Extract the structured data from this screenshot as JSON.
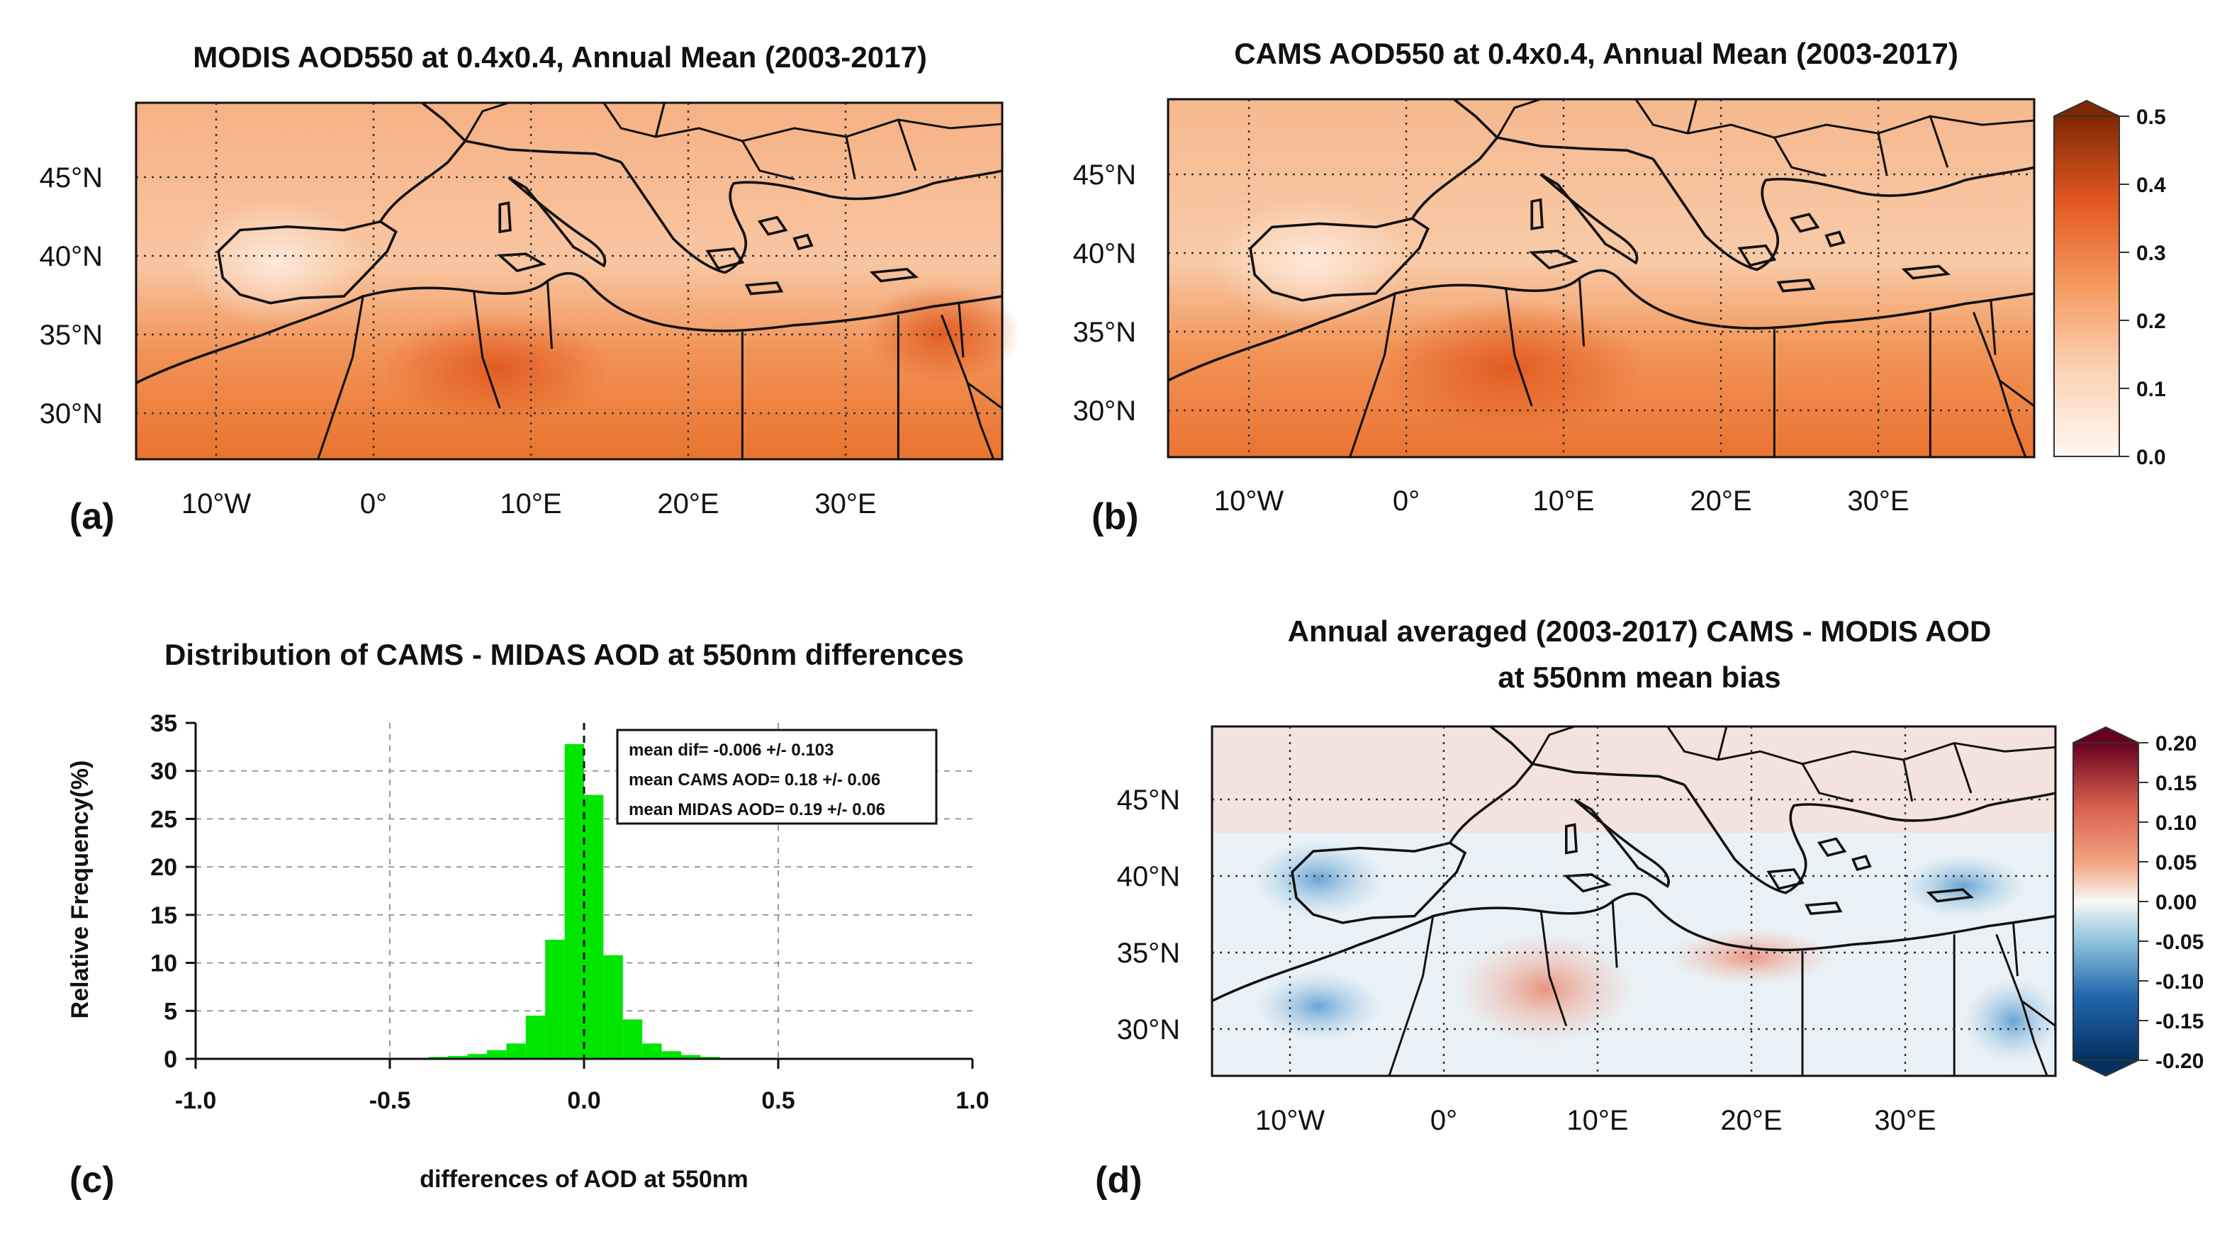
{
  "colors": {
    "map_low": "#fde7d8",
    "map_mid": "#f29a6a",
    "map_high": "#e2581f",
    "div_neg": "#1f6fb1",
    "div_zero": "#f3f6f8",
    "div_pos": "#d6604d",
    "hist_bar": "#00e600",
    "grid": "#555555"
  },
  "panels": {
    "a": {
      "label": "(a)",
      "title": "MODIS AOD550 at 0.4x0.4, Annual Mean (2003-2017)"
    },
    "b": {
      "label": "(b)",
      "title": "CAMS AOD550 at 0.4x0.4, Annual Mean (2003-2017)"
    },
    "c": {
      "label": "(c)",
      "title": "Distribution  of CAMS - MIDAS AOD at 550nm differences"
    },
    "d": {
      "label": "(d)",
      "title_line1": "Annual averaged (2003-2017) CAMS - MODIS AOD",
      "title_line2": "at 550nm mean bias"
    }
  },
  "map_axes": {
    "lon_labels": [
      "10°W",
      "0°",
      "10°E",
      "20°E",
      "30°E"
    ],
    "lat_labels": [
      "45°N",
      "40°N",
      "35°N",
      "30°N"
    ]
  },
  "colorbars": {
    "aod": {
      "ticks": [
        "0.5",
        "0.4",
        "0.3",
        "0.2",
        "0.1",
        "0.0"
      ],
      "range": [
        0.0,
        0.5
      ]
    },
    "bias": {
      "ticks": [
        "0.20",
        "0.15",
        "0.10",
        "0.05",
        "0.00",
        "-0.05",
        "-0.10",
        "-0.15",
        "-0.20"
      ],
      "range": [
        -0.2,
        0.2
      ]
    }
  },
  "chart_data": {
    "type": "bar",
    "title": "Distribution  of CAMS - MIDAS AOD at 550nm differences",
    "xlabel": "differences of AOD at 550nm",
    "ylabel": "Relative Frequency(%)",
    "xlim": [
      -1.0,
      1.0
    ],
    "ylim": [
      0,
      35
    ],
    "x_ticks": [
      "-1.0",
      "-0.5",
      "0.0",
      "0.5",
      "1.0"
    ],
    "y_ticks": [
      "0",
      "5",
      "10",
      "15",
      "20",
      "25",
      "30",
      "35"
    ],
    "bin_width": 0.05,
    "bin_starts": [
      -0.6,
      -0.55,
      -0.5,
      -0.45,
      -0.4,
      -0.35,
      -0.3,
      -0.25,
      -0.2,
      -0.15,
      -0.1,
      -0.05,
      0.0,
      0.05,
      0.1,
      0.15,
      0.2,
      0.25,
      0.3,
      0.35,
      0.4,
      0.45,
      0.5
    ],
    "values": [
      0.05,
      0.05,
      0.1,
      0.1,
      0.2,
      0.3,
      0.5,
      0.9,
      1.6,
      4.5,
      12.4,
      32.8,
      27.5,
      10.8,
      4.1,
      1.6,
      0.8,
      0.4,
      0.2,
      0.1,
      0.05,
      0.05,
      0.05
    ],
    "annotations": [
      "mean dif= -0.006 +/- 0.103",
      "mean CAMS  AOD= 0.18 +/- 0.06",
      "mean MIDAS AOD= 0.19 +/- 0.06"
    ]
  }
}
